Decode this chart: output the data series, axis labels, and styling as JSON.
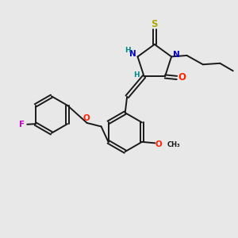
{
  "bg_color": "#e8e8e8",
  "bond_color": "#1a1a1a",
  "N_color": "#0000cc",
  "O_color": "#ff2200",
  "S_color": "#aaaa00",
  "F_color": "#cc00cc",
  "H_color": "#008888",
  "figsize": [
    3.0,
    3.0
  ],
  "dpi": 100,
  "xlim": [
    0,
    10
  ],
  "ylim": [
    0,
    10
  ]
}
